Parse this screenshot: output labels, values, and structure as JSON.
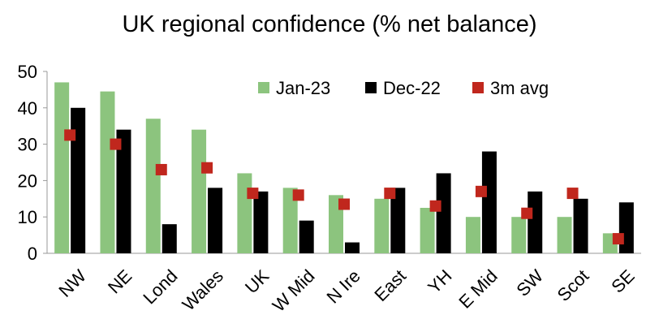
{
  "chart_data": {
    "type": "bar",
    "title": "UK regional confidence (% net balance)",
    "xlabel": "",
    "ylabel": "",
    "ylim": [
      0,
      50
    ],
    "yticks": [
      0,
      10,
      20,
      30,
      40,
      50
    ],
    "grid": false,
    "legend_position": "top-right",
    "categories": [
      "NW",
      "NE",
      "Lond",
      "Wales",
      "UK",
      "W Mid",
      "N Ire",
      "East",
      "YH",
      "E Mid",
      "SW",
      "Scot",
      "SE"
    ],
    "series": [
      {
        "name": "Jan-23",
        "type": "bar",
        "color": "#8cc47e",
        "values": [
          47,
          44.5,
          37,
          34,
          22,
          18,
          16,
          15,
          12.5,
          10,
          10,
          10,
          5.5
        ]
      },
      {
        "name": "Dec-22",
        "type": "bar",
        "color": "#000000",
        "values": [
          40,
          34,
          8,
          18,
          17,
          9,
          3,
          18,
          22,
          28,
          17,
          15,
          14
        ]
      },
      {
        "name": "3m avg",
        "type": "marker",
        "color": "#c0271d",
        "values": [
          32.5,
          30,
          23,
          23.5,
          16.5,
          16,
          13.5,
          16.5,
          13,
          17,
          11,
          16.5,
          4
        ]
      }
    ]
  }
}
